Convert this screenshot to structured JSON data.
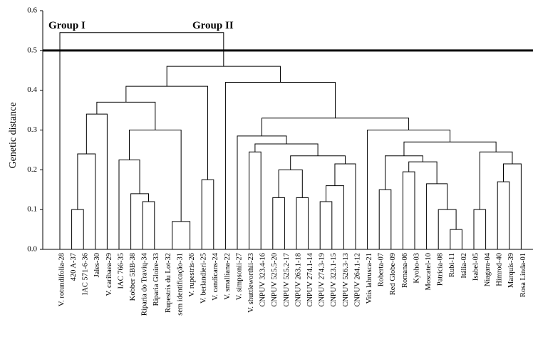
{
  "chart_data": {
    "type": "dendrogram",
    "y_label": "Genetic distance",
    "ylim": [
      0,
      0.6
    ],
    "yticks": [
      {
        "value": 0,
        "label": "0.0"
      },
      {
        "value": 0.1,
        "label": "0.1"
      },
      {
        "value": 0.2,
        "label": "0.2"
      },
      {
        "value": 0.3,
        "label": "0.3"
      },
      {
        "value": 0.4,
        "label": "0.4"
      },
      {
        "value": 0.5,
        "label": "0.5"
      },
      {
        "value": 0.6,
        "label": "0.6"
      }
    ],
    "cut_height": 0.5,
    "groups": [
      "Group I",
      "Group II"
    ],
    "color": "#000000",
    "leaves": [
      "V. rotundifolia-28",
      "420 A-37",
      "IAC 571-6-36",
      "Jales-30",
      "V. caribaea-29",
      "IAC 766-35",
      "Kobber 5BB-38",
      "Riparia do Travių-34",
      "Riparia Gloire-33",
      "Rupestris du Lot-32",
      "sem identificação-31",
      "V. rupestris-26",
      "V. berlandieri-25",
      "V. candicans-24",
      "V. smalliana-22",
      "V. simpsonii-27",
      "V. shuttleworthii-23",
      "CNPUV 323.4-16",
      "CNPUV 525.5-20",
      "CNPUV 525.2-17",
      "CNPUV 263.1-18",
      "CNPUV 274.1-14",
      "CNPUV 274.3-19",
      "CNPUV 323.1-15",
      "CNPUV 526.3-13",
      "CNPUV 264.1-12",
      "Vitis labrusca-21",
      "Roberta-07",
      "Red Globe-09",
      "Romana-06",
      "Kyoho-03",
      "Moscatel-10",
      "Patrícia-08",
      "Rubi-11",
      "Itália-02",
      "Isabel-05",
      "Niagara-04",
      "Himrod-40",
      "Marquis-39",
      "Rosa Linda-01"
    ],
    "merges": [
      {
        "children": [
          1,
          2
        ],
        "height": 0.1
      },
      {
        "children": [
          40,
          3
        ],
        "height": 0.24
      },
      {
        "children": [
          41,
          4
        ],
        "height": 0.34
      },
      {
        "children": [
          7,
          8
        ],
        "height": 0.12
      },
      {
        "children": [
          6,
          43
        ],
        "height": 0.14
      },
      {
        "children": [
          5,
          44
        ],
        "height": 0.225
      },
      {
        "children": [
          9,
          10
        ],
        "height": 0
      },
      {
        "children": [
          46,
          11
        ],
        "height": 0.07
      },
      {
        "children": [
          45,
          47
        ],
        "height": 0.3
      },
      {
        "children": [
          42,
          48
        ],
        "height": 0.37
      },
      {
        "children": [
          12,
          13
        ],
        "height": 0.175
      },
      {
        "children": [
          49,
          50
        ],
        "height": 0.41
      },
      {
        "children": [
          18,
          19
        ],
        "height": 0.13
      },
      {
        "children": [
          20,
          21
        ],
        "height": 0.13
      },
      {
        "children": [
          52,
          53
        ],
        "height": 0.2
      },
      {
        "children": [
          22,
          23
        ],
        "height": 0.12
      },
      {
        "children": [
          55,
          24
        ],
        "height": 0.16
      },
      {
        "children": [
          56,
          25
        ],
        "height": 0.215
      },
      {
        "children": [
          54,
          57
        ],
        "height": 0.235
      },
      {
        "children": [
          16,
          17
        ],
        "height": 0.245
      },
      {
        "children": [
          59,
          58
        ],
        "height": 0.265
      },
      {
        "children": [
          15,
          60
        ],
        "height": 0.285
      },
      {
        "children": [
          33,
          34
        ],
        "height": 0.05
      },
      {
        "children": [
          32,
          62
        ],
        "height": 0.1
      },
      {
        "children": [
          31,
          63
        ],
        "height": 0.165
      },
      {
        "children": [
          29,
          30
        ],
        "height": 0.195
      },
      {
        "children": [
          65,
          64
        ],
        "height": 0.22
      },
      {
        "children": [
          27,
          28
        ],
        "height": 0.15
      },
      {
        "children": [
          67,
          66
        ],
        "height": 0.235
      },
      {
        "children": [
          35,
          36
        ],
        "height": 0.1
      },
      {
        "children": [
          37,
          38
        ],
        "height": 0.17
      },
      {
        "children": [
          70,
          39
        ],
        "height": 0.215
      },
      {
        "children": [
          69,
          71
        ],
        "height": 0.245
      },
      {
        "children": [
          68,
          72
        ],
        "height": 0.27
      },
      {
        "children": [
          26,
          73
        ],
        "height": 0.3
      },
      {
        "children": [
          61,
          74
        ],
        "height": 0.33
      },
      {
        "children": [
          14,
          75
        ],
        "height": 0.42
      },
      {
        "children": [
          51,
          76
        ],
        "height": 0.46
      },
      {
        "children": [
          0,
          77
        ],
        "height": 0.545
      }
    ]
  }
}
